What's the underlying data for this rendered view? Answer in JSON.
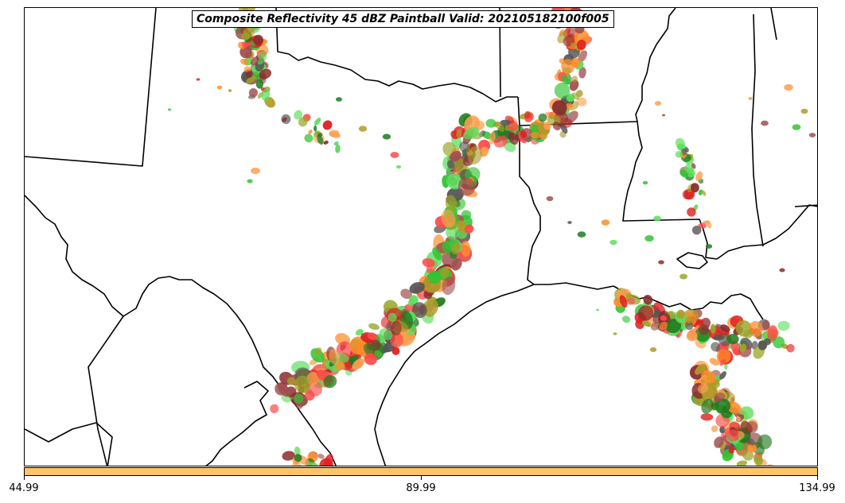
{
  "title": "Composite Reflectivity 45 dBZ Paintball Valid: 202105182100f005",
  "colorbar": {
    "color": "#fec468",
    "ticks": [
      "44.99",
      "89.99",
      "134.99"
    ]
  },
  "colors": {
    "paintball": [
      "#e02020",
      "#ff4a4a",
      "#ff8c2a",
      "#fca050",
      "#31c431",
      "#5cde5c",
      "#1f7a1f",
      "#9aa72a",
      "#b09a2a",
      "#8b2d2d",
      "#a05050",
      "#555555"
    ],
    "borders": "#000000"
  }
}
